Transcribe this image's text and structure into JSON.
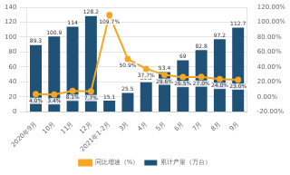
{
  "chart_data": {
    "type": "bar",
    "categories": [
      "2020年9月",
      "10月",
      "11月",
      "12月",
      "2021年1-2月",
      "3月",
      "4月",
      "5月",
      "6月",
      "7月",
      "8月",
      "9月"
    ],
    "series": [
      {
        "name": "累计产量（万台）",
        "type": "bar",
        "color": "#1f5276",
        "values": [
          89.3,
          100.9,
          114,
          128.2,
          15.1,
          25.5,
          39.8,
          53.4,
          69,
          82.8,
          97.2,
          112.7
        ]
      },
      {
        "name": "同比增速（%）",
        "type": "line",
        "axis": "y2",
        "color": "#f5a623",
        "marker": "circle",
        "values": [
          4.0,
          3.4,
          8.1,
          7.7,
          109.7,
          50.9,
          37.7,
          29.6,
          26.5,
          27.0,
          24.0,
          23.0
        ],
        "value_labels": [
          "4.0%",
          "3.4%",
          "8.1%",
          "7.7%",
          "109.7%",
          "50.9%",
          "37.7%",
          "29.6%",
          "26.5%",
          "27.0%",
          "24.0%",
          "23.0%"
        ]
      }
    ],
    "ylim": [
      0,
      140
    ],
    "yticks": [
      0,
      20,
      40,
      60,
      80,
      100,
      120,
      140
    ],
    "y2lim": [
      -20,
      120
    ],
    "y2ticks": [
      {
        "value": -20,
        "label": "-20.00%"
      },
      {
        "value": 0,
        "label": "0.00%"
      },
      {
        "value": 20,
        "label": "20.00%"
      },
      {
        "value": 40,
        "label": "40.00%"
      },
      {
        "value": 60,
        "label": "60.00%"
      },
      {
        "value": 80,
        "label": "80.00%"
      },
      {
        "value": 100,
        "label": "100.00%"
      },
      {
        "value": 120,
        "label": "120.00%"
      }
    ],
    "grid": true,
    "legend": "bottom",
    "data_labels": true
  }
}
